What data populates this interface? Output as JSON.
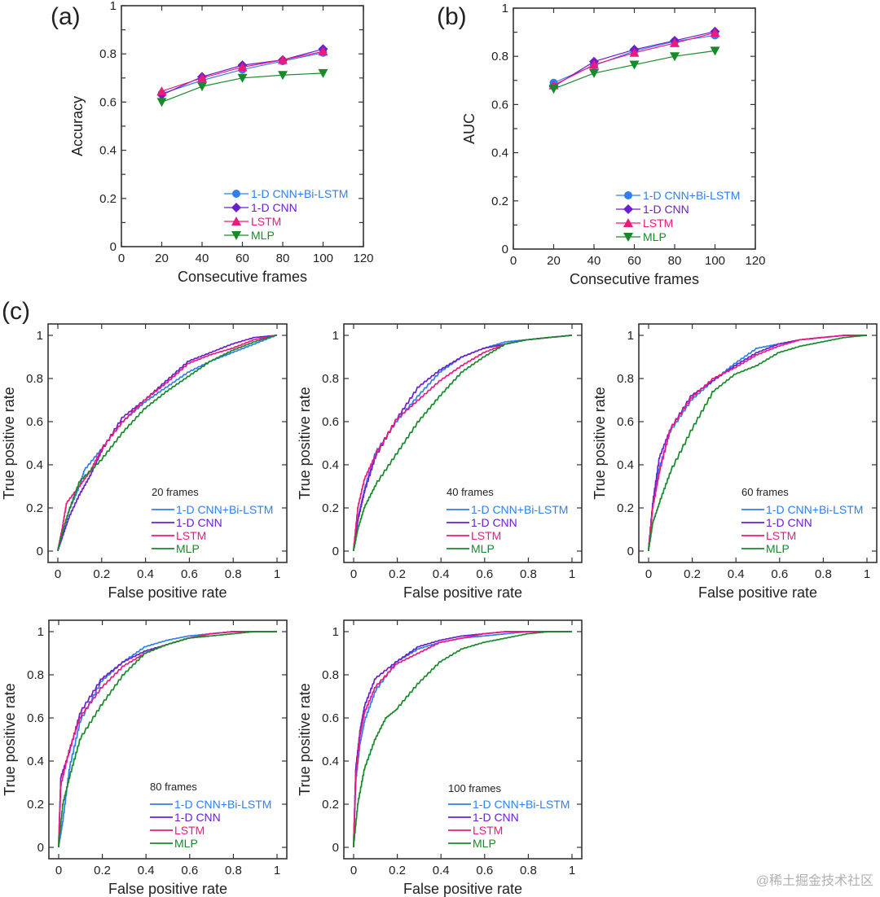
{
  "figure": {
    "panel_labels": [
      "(a)",
      "(b)",
      "(c)"
    ],
    "watermark": "@稀土掘金技术社区",
    "colors": {
      "1-D CNN+Bi-LSTM": "#2f7fef",
      "1-D CNN": "#6a1fd1",
      "LSTM": "#ec1a7c",
      "MLP": "#178a2a"
    },
    "markers": {
      "1-D CNN+Bi-LSTM": "circle",
      "1-D CNN": "diamond",
      "LSTM": "triangle-up",
      "MLP": "triangle-down"
    }
  },
  "chart_data": [
    {
      "id": "a",
      "type": "line",
      "title": "",
      "xlabel": "Consecutive frames",
      "ylabel": "Accuracy",
      "xlim": [
        0,
        120
      ],
      "ylim": [
        0,
        1
      ],
      "xticks": [
        "0",
        "20",
        "40",
        "60",
        "80",
        "100",
        "120"
      ],
      "yticks": [
        "0",
        "0.2",
        "0.4",
        "0.6",
        "0.8",
        "1"
      ],
      "legend_position": "bottom-right",
      "x": [
        20,
        40,
        60,
        80,
        100
      ],
      "series": [
        {
          "name": "1-D CNN+Bi-LSTM",
          "values": [
            0.635,
            0.69,
            0.735,
            0.77,
            0.805
          ]
        },
        {
          "name": "1-D CNN",
          "values": [
            0.63,
            0.705,
            0.753,
            0.775,
            0.82
          ]
        },
        {
          "name": "LSTM",
          "values": [
            0.645,
            0.7,
            0.745,
            0.775,
            0.81
          ]
        },
        {
          "name": "MLP",
          "values": [
            0.6,
            0.665,
            0.7,
            0.712,
            0.72
          ]
        }
      ]
    },
    {
      "id": "b",
      "type": "line",
      "title": "",
      "xlabel": "Consecutive frames",
      "ylabel": "AUC",
      "xlim": [
        0,
        120
      ],
      "ylim": [
        0,
        1
      ],
      "xticks": [
        "0",
        "20",
        "40",
        "60",
        "80",
        "100",
        "120"
      ],
      "yticks": [
        "0",
        "0.2",
        "0.4",
        "0.6",
        "0.8",
        "1"
      ],
      "legend_position": "bottom-right",
      "x": [
        20,
        40,
        60,
        80,
        100
      ],
      "series": [
        {
          "name": "1-D CNN+Bi-LSTM",
          "values": [
            0.69,
            0.762,
            0.822,
            0.862,
            0.887
          ]
        },
        {
          "name": "1-D CNN",
          "values": [
            0.675,
            0.778,
            0.828,
            0.865,
            0.903
          ]
        },
        {
          "name": "LSTM",
          "values": [
            0.68,
            0.765,
            0.815,
            0.855,
            0.898
          ]
        },
        {
          "name": "MLP",
          "values": [
            0.665,
            0.73,
            0.765,
            0.8,
            0.823
          ]
        }
      ]
    },
    {
      "id": "c-20",
      "type": "line",
      "annotation": "20 frames",
      "xlabel": "False positive rate",
      "ylabel": "True positive rate",
      "xlim": [
        0,
        1
      ],
      "ylim": [
        0,
        1
      ],
      "xticks": [
        "0",
        "0.2",
        "0.4",
        "0.6",
        "0.8",
        "1"
      ],
      "yticks": [
        "0",
        "0.2",
        "0.4",
        "0.6",
        "0.8",
        "1"
      ],
      "legend_position": "bottom-right",
      "series": [
        {
          "name": "1-D CNN+Bi-LSTM",
          "x": [
            0,
            0.02,
            0.05,
            0.1,
            0.12,
            0.2,
            0.3,
            0.4,
            0.5,
            0.6,
            0.7,
            0.8,
            0.9,
            1
          ],
          "y": [
            0,
            0.08,
            0.18,
            0.3,
            0.37,
            0.47,
            0.6,
            0.69,
            0.76,
            0.83,
            0.88,
            0.92,
            0.96,
            1
          ]
        },
        {
          "name": "1-D CNN",
          "x": [
            0,
            0.02,
            0.05,
            0.1,
            0.15,
            0.2,
            0.3,
            0.4,
            0.5,
            0.6,
            0.7,
            0.8,
            0.9,
            1
          ],
          "y": [
            0,
            0.06,
            0.15,
            0.26,
            0.35,
            0.46,
            0.62,
            0.7,
            0.79,
            0.88,
            0.92,
            0.96,
            0.99,
            1
          ]
        },
        {
          "name": "LSTM",
          "x": [
            0,
            0.02,
            0.04,
            0.1,
            0.15,
            0.2,
            0.3,
            0.4,
            0.5,
            0.6,
            0.7,
            0.8,
            0.9,
            1
          ],
          "y": [
            0,
            0.1,
            0.22,
            0.3,
            0.37,
            0.47,
            0.6,
            0.7,
            0.78,
            0.87,
            0.91,
            0.94,
            0.98,
            1
          ]
        },
        {
          "name": "MLP",
          "x": [
            0,
            0.02,
            0.05,
            0.1,
            0.2,
            0.3,
            0.4,
            0.5,
            0.6,
            0.7,
            0.8,
            0.9,
            1
          ],
          "y": [
            0,
            0.08,
            0.18,
            0.32,
            0.42,
            0.55,
            0.66,
            0.74,
            0.81,
            0.88,
            0.93,
            0.97,
            1
          ]
        }
      ]
    },
    {
      "id": "c-40",
      "type": "line",
      "annotation": "40 frames",
      "xlabel": "False positive rate",
      "ylabel": "True positive rate",
      "xlim": [
        0,
        1
      ],
      "ylim": [
        0,
        1
      ],
      "xticks": [
        "0",
        "0.2",
        "0.4",
        "0.6",
        "0.8",
        "1"
      ],
      "yticks": [
        "0",
        "0.2",
        "0.4",
        "0.6",
        "0.8",
        "1"
      ],
      "legend_position": "bottom-right",
      "series": [
        {
          "name": "1-D CNN+Bi-LSTM",
          "x": [
            0,
            0.02,
            0.05,
            0.1,
            0.2,
            0.3,
            0.4,
            0.5,
            0.6,
            0.7,
            0.8,
            0.9,
            1
          ],
          "y": [
            0,
            0.15,
            0.28,
            0.45,
            0.6,
            0.72,
            0.83,
            0.9,
            0.94,
            0.97,
            0.98,
            0.99,
            1
          ]
        },
        {
          "name": "1-D CNN",
          "x": [
            0,
            0.02,
            0.05,
            0.1,
            0.2,
            0.3,
            0.4,
            0.5,
            0.6,
            0.7,
            0.8,
            0.9,
            1
          ],
          "y": [
            0,
            0.14,
            0.27,
            0.43,
            0.61,
            0.76,
            0.84,
            0.9,
            0.94,
            0.96,
            0.98,
            0.99,
            1
          ]
        },
        {
          "name": "LSTM",
          "x": [
            0,
            0.02,
            0.05,
            0.1,
            0.2,
            0.3,
            0.4,
            0.5,
            0.6,
            0.7,
            0.8,
            0.9,
            1
          ],
          "y": [
            0,
            0.2,
            0.33,
            0.44,
            0.61,
            0.7,
            0.79,
            0.86,
            0.92,
            0.96,
            0.98,
            0.99,
            1
          ]
        },
        {
          "name": "MLP",
          "x": [
            0,
            0.02,
            0.05,
            0.1,
            0.2,
            0.3,
            0.4,
            0.5,
            0.6,
            0.7,
            0.8,
            0.9,
            1
          ],
          "y": [
            0,
            0.1,
            0.2,
            0.3,
            0.45,
            0.6,
            0.72,
            0.83,
            0.9,
            0.96,
            0.98,
            0.99,
            1
          ]
        }
      ]
    },
    {
      "id": "c-60",
      "type": "line",
      "annotation": "60 frames",
      "xlabel": "False positive rate",
      "ylabel": "True positive rate",
      "xlim": [
        0,
        1
      ],
      "ylim": [
        0,
        1
      ],
      "xticks": [
        "0",
        "0.2",
        "0.4",
        "0.6",
        "0.8",
        "1"
      ],
      "yticks": [
        "0",
        "0.2",
        "0.4",
        "0.6",
        "0.8",
        "1"
      ],
      "legend_position": "bottom-right",
      "series": [
        {
          "name": "1-D CNN+Bi-LSTM",
          "x": [
            0,
            0.02,
            0.05,
            0.1,
            0.2,
            0.3,
            0.4,
            0.5,
            0.6,
            0.7,
            0.8,
            0.9,
            1
          ],
          "y": [
            0,
            0.22,
            0.38,
            0.55,
            0.7,
            0.79,
            0.87,
            0.94,
            0.96,
            0.98,
            0.99,
            1,
            1
          ]
        },
        {
          "name": "1-D CNN",
          "x": [
            0,
            0.02,
            0.05,
            0.1,
            0.2,
            0.3,
            0.4,
            0.5,
            0.6,
            0.7,
            0.8,
            0.9,
            1
          ],
          "y": [
            0,
            0.22,
            0.43,
            0.56,
            0.72,
            0.79,
            0.86,
            0.92,
            0.96,
            0.98,
            0.99,
            1,
            1
          ]
        },
        {
          "name": "LSTM",
          "x": [
            0,
            0.02,
            0.05,
            0.1,
            0.2,
            0.3,
            0.4,
            0.5,
            0.6,
            0.7,
            0.8,
            0.9,
            1
          ],
          "y": [
            0,
            0.2,
            0.36,
            0.56,
            0.71,
            0.8,
            0.85,
            0.91,
            0.95,
            0.98,
            0.99,
            1,
            1
          ]
        },
        {
          "name": "MLP",
          "x": [
            0,
            0.02,
            0.05,
            0.1,
            0.2,
            0.3,
            0.4,
            0.5,
            0.6,
            0.7,
            0.8,
            0.9,
            1
          ],
          "y": [
            0,
            0.13,
            0.22,
            0.36,
            0.56,
            0.74,
            0.82,
            0.86,
            0.92,
            0.95,
            0.97,
            0.99,
            1
          ]
        }
      ]
    },
    {
      "id": "c-80",
      "type": "line",
      "annotation": "80 frames",
      "xlabel": "False positive rate",
      "ylabel": "True positive rate",
      "xlim": [
        0,
        1
      ],
      "ylim": [
        0,
        1
      ],
      "xticks": [
        "0",
        "0.2",
        "0.4",
        "0.6",
        "0.8",
        "1"
      ],
      "yticks": [
        "0",
        "0.2",
        "0.4",
        "0.6",
        "0.8",
        "1"
      ],
      "legend_position": "bottom-right",
      "series": [
        {
          "name": "1-D CNN+Bi-LSTM",
          "x": [
            0,
            0.02,
            0.05,
            0.1,
            0.2,
            0.3,
            0.4,
            0.5,
            0.6,
            0.7,
            0.8,
            0.9,
            1
          ],
          "y": [
            0,
            0.12,
            0.36,
            0.58,
            0.77,
            0.86,
            0.93,
            0.96,
            0.98,
            0.99,
            1,
            1,
            1
          ]
        },
        {
          "name": "1-D CNN",
          "x": [
            0,
            0.01,
            0.05,
            0.1,
            0.2,
            0.3,
            0.4,
            0.5,
            0.6,
            0.7,
            0.8,
            0.9,
            1
          ],
          "y": [
            0,
            0.32,
            0.44,
            0.62,
            0.78,
            0.86,
            0.91,
            0.94,
            0.97,
            0.99,
            1,
            1,
            1
          ]
        },
        {
          "name": "LSTM",
          "x": [
            0,
            0.01,
            0.05,
            0.1,
            0.2,
            0.3,
            0.4,
            0.5,
            0.6,
            0.7,
            0.8,
            0.9,
            1
          ],
          "y": [
            0,
            0.28,
            0.45,
            0.6,
            0.74,
            0.84,
            0.9,
            0.94,
            0.97,
            0.99,
            1,
            1,
            1
          ]
        },
        {
          "name": "MLP",
          "x": [
            0,
            0.02,
            0.05,
            0.1,
            0.2,
            0.3,
            0.4,
            0.5,
            0.6,
            0.7,
            0.8,
            0.9,
            1
          ],
          "y": [
            0,
            0.2,
            0.32,
            0.5,
            0.66,
            0.8,
            0.9,
            0.94,
            0.97,
            0.98,
            0.99,
            1,
            1
          ]
        }
      ]
    },
    {
      "id": "c-100",
      "type": "line",
      "annotation": "100 frames",
      "xlabel": "False positive rate",
      "ylabel": "True positive rate",
      "xlim": [
        0,
        1
      ],
      "ylim": [
        0,
        1
      ],
      "xticks": [
        "0",
        "0.2",
        "0.4",
        "0.6",
        "0.8",
        "1"
      ],
      "yticks": [
        "0",
        "0.2",
        "0.4",
        "0.6",
        "0.8",
        "1"
      ],
      "legend_position": "bottom-right",
      "series": [
        {
          "name": "1-D CNN+Bi-LSTM",
          "x": [
            0,
            0.01,
            0.03,
            0.05,
            0.1,
            0.2,
            0.3,
            0.4,
            0.5,
            0.6,
            0.7,
            0.8,
            0.9,
            1
          ],
          "y": [
            0,
            0.3,
            0.48,
            0.58,
            0.72,
            0.86,
            0.92,
            0.95,
            0.97,
            0.98,
            0.99,
            1,
            1,
            1
          ]
        },
        {
          "name": "1-D CNN",
          "x": [
            0,
            0.01,
            0.03,
            0.05,
            0.1,
            0.2,
            0.3,
            0.4,
            0.5,
            0.6,
            0.7,
            0.8,
            0.9,
            1
          ],
          "y": [
            0,
            0.36,
            0.54,
            0.65,
            0.78,
            0.86,
            0.93,
            0.96,
            0.98,
            0.99,
            1,
            1,
            1,
            1
          ]
        },
        {
          "name": "LSTM",
          "x": [
            0,
            0.01,
            0.03,
            0.05,
            0.1,
            0.2,
            0.3,
            0.4,
            0.5,
            0.6,
            0.7,
            0.8,
            0.9,
            1
          ],
          "y": [
            0,
            0.32,
            0.52,
            0.62,
            0.74,
            0.85,
            0.9,
            0.95,
            0.97,
            0.99,
            1,
            1,
            1,
            1
          ]
        },
        {
          "name": "MLP",
          "x": [
            0,
            0.02,
            0.05,
            0.1,
            0.15,
            0.2,
            0.3,
            0.4,
            0.5,
            0.6,
            0.7,
            0.8,
            0.9,
            1
          ],
          "y": [
            0,
            0.2,
            0.36,
            0.5,
            0.6,
            0.64,
            0.76,
            0.86,
            0.92,
            0.95,
            0.97,
            0.99,
            1,
            1
          ]
        }
      ]
    }
  ]
}
